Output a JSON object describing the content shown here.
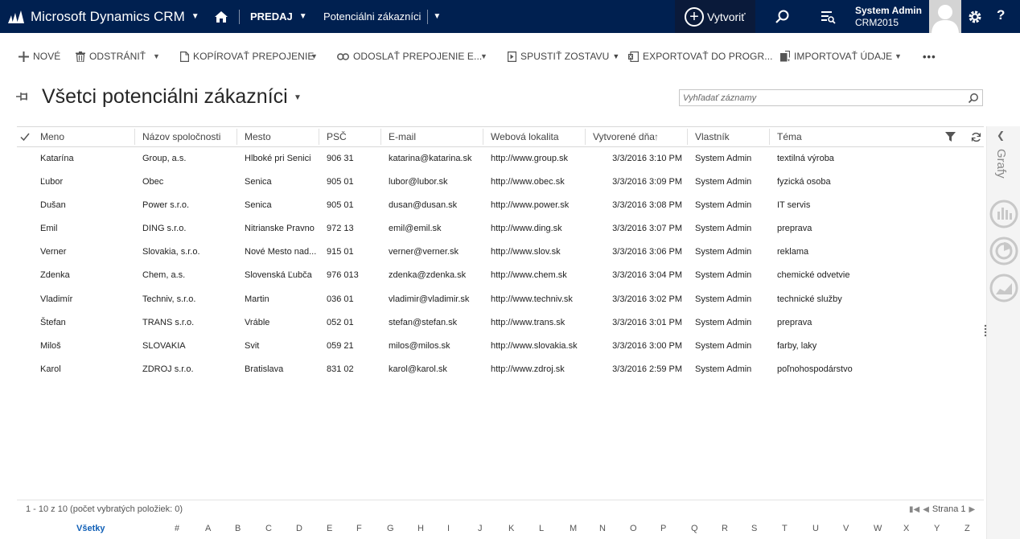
{
  "nav": {
    "brand": "Microsoft Dynamics CRM",
    "area": "PREDAJ",
    "entity": "Potenciálni zákazníci",
    "create_label": "Vytvoriť",
    "user_name": "System Admin",
    "org_name": "CRM2015",
    "help": "?",
    "colors": {
      "bar": "#002050",
      "create_bg": "#0a1a3a"
    }
  },
  "commands": {
    "new": "NOVÉ",
    "delete": "ODSTRÁNIŤ",
    "copy_link": "KOPÍROVAŤ PREPOJENIE",
    "send_link": "ODOSLAŤ PREPOJENIE E...",
    "run_report": "SPUSTIŤ ZOSTAVU",
    "export": "EXPORTOVAŤ DO PROGR...",
    "import": "IMPORTOVAŤ ÚDAJE",
    "more": "•••"
  },
  "view": {
    "title": "Všetci potenciálni zákazníci",
    "search_placeholder": "Vyhľadať záznamy"
  },
  "grid": {
    "columns": [
      "Meno",
      "Názov spoločnosti",
      "Mesto",
      "PSČ",
      "E-mail",
      "Webová lokalita",
      "Vytvorené dňa",
      "Vlastník",
      "Téma"
    ],
    "rows": [
      [
        "Katarína",
        "Group, a.s.",
        "Hlboké pri Senici",
        "906 31",
        "katarina@katarina.sk",
        "http://www.group.sk",
        "3/3/2016 3:10 PM",
        "System Admin",
        "textilná výroba"
      ],
      [
        "Ľubor",
        "Obec",
        "Senica",
        "905 01",
        "lubor@lubor.sk",
        "http://www.obec.sk",
        "3/3/2016 3:09 PM",
        "System Admin",
        "fyzická osoba"
      ],
      [
        "Dušan",
        "Power s.r.o.",
        "Senica",
        "905 01",
        "dusan@dusan.sk",
        "http://www.power.sk",
        "3/3/2016 3:08 PM",
        "System Admin",
        "IT servis"
      ],
      [
        "Emil",
        "DING s.r.o.",
        "Nitrianske Pravno",
        "972 13",
        "emil@emil.sk",
        "http://www.ding.sk",
        "3/3/2016 3:07 PM",
        "System Admin",
        "preprava"
      ],
      [
        "Verner",
        "Slovakia, s.r.o.",
        "Nové Mesto nad...",
        "915 01",
        "verner@verner.sk",
        "http://www.slov.sk",
        "3/3/2016 3:06 PM",
        "System Admin",
        "reklama"
      ],
      [
        "Zdenka",
        "Chem, a.s.",
        "Slovenská Ľubča",
        "976 013",
        "zdenka@zdenka.sk",
        "http://www.chem.sk",
        "3/3/2016 3:04 PM",
        "System Admin",
        "chemické odvetvie"
      ],
      [
        "Vladimír",
        "Techniv, s.r.o.",
        "Martin",
        "036 01",
        "vladimir@vladimir.sk",
        "http://www.techniv.sk",
        "3/3/2016 3:02 PM",
        "System Admin",
        "technické služby"
      ],
      [
        "Štefan",
        "TRANS s.r.o.",
        "Vráble",
        "052 01",
        "stefan@stefan.sk",
        "http://www.trans.sk",
        "3/3/2016 3:01 PM",
        "System Admin",
        "preprava"
      ],
      [
        "Miloš",
        "SLOVAKIA",
        "Svit",
        "059 21",
        "milos@milos.sk",
        "http://www.slovakia.sk",
        "3/3/2016 3:00 PM",
        "System Admin",
        "farby, laky"
      ],
      [
        "Karol",
        "ZDROJ s.r.o.",
        "Bratislava",
        "831 02",
        "karol@karol.sk",
        "http://www.zdroj.sk",
        "3/3/2016 2:59 PM",
        "System Admin",
        "poľnohospodárstvo"
      ]
    ]
  },
  "charts_pane": {
    "label": "Grafy"
  },
  "footer": {
    "status": "1 - 10  z 10  (počet vybratých položiek: 0)",
    "page": "Strana 1",
    "alpha_all": "Všetky",
    "alpha": [
      "#",
      "A",
      "B",
      "C",
      "D",
      "E",
      "F",
      "G",
      "H",
      "I",
      "J",
      "K",
      "L",
      "M",
      "N",
      "O",
      "P",
      "Q",
      "R",
      "S",
      "T",
      "U",
      "V",
      "W",
      "X",
      "Y",
      "Z"
    ]
  }
}
